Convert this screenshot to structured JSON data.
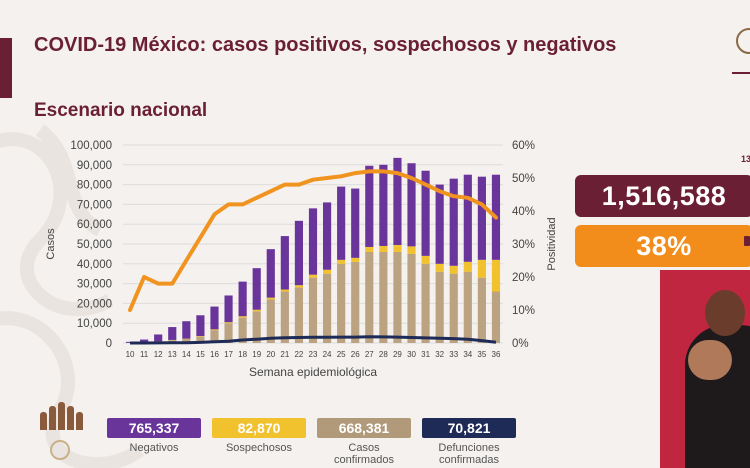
{
  "header": {
    "title": "COVID-19 México: casos positivos, sospechosos y negativos",
    "subtitle": "Escenario nacional"
  },
  "colors": {
    "brand": "#6b1f35",
    "negativos": "#6a359b",
    "sospechosos": "#f2c12e",
    "confirmados": "#bba382",
    "defunciones": "#1f2b57",
    "positividad": "#f0931f"
  },
  "chart_data": {
    "type": "bar",
    "xlabel": "Semana epidemiológica",
    "ylabel": "Casos",
    "y2label": "Positividad",
    "ylim": [
      0,
      100000
    ],
    "y2lim": [
      0,
      60
    ],
    "yticks": [
      "100,000",
      "90,000",
      "80,000",
      "70,000",
      "60,000",
      "50,000",
      "40,000",
      "30,000",
      "20,000",
      "10,000",
      "0"
    ],
    "y2ticks": [
      "60%",
      "50%",
      "40%",
      "30%",
      "20%",
      "10%",
      "0%"
    ],
    "categories": [
      "10",
      "11",
      "12",
      "13",
      "14",
      "15",
      "16",
      "17",
      "18",
      "19",
      "20",
      "21",
      "22",
      "23",
      "24",
      "25",
      "26",
      "27",
      "28",
      "29",
      "30",
      "31",
      "32",
      "33",
      "34",
      "35",
      "36"
    ],
    "series": [
      {
        "name": "Casos confirmados",
        "kind": "stack",
        "values": [
          50,
          200,
          700,
          1400,
          2000,
          3200,
          6500,
          10000,
          12800,
          16000,
          22000,
          26000,
          28000,
          33000,
          35000,
          40000,
          41000,
          46000,
          46000,
          46000,
          45000,
          40000,
          36000,
          35000,
          36000,
          33000,
          26000
        ]
      },
      {
        "name": "Sospechosos",
        "kind": "stack",
        "values": [
          20,
          50,
          100,
          150,
          200,
          300,
          400,
          500,
          700,
          800,
          900,
          1000,
          1200,
          1500,
          2000,
          2000,
          2000,
          2500,
          3000,
          3500,
          3800,
          4000,
          4000,
          4000,
          5000,
          9000,
          16000
        ]
      },
      {
        "name": "Negativos",
        "kind": "stack",
        "values": [
          500,
          1500,
          3500,
          6500,
          8800,
          10500,
          11500,
          13500,
          17500,
          21000,
          24500,
          27000,
          32500,
          33500,
          34000,
          37000,
          35000,
          41000,
          41000,
          44000,
          42000,
          43000,
          40000,
          44000,
          44000,
          42000,
          43000
        ]
      },
      {
        "name": "Defunciones confirmadas",
        "kind": "line-cases",
        "values": [
          0,
          10,
          40,
          80,
          150,
          300,
          600,
          900,
          1500,
          1900,
          2400,
          2700,
          2800,
          2900,
          2950,
          3000,
          3000,
          3200,
          3100,
          3000,
          2800,
          2600,
          2400,
          2200,
          1900,
          1200,
          400
        ]
      },
      {
        "name": "Positividad",
        "kind": "line-pct",
        "values": [
          10,
          20,
          18,
          18,
          25,
          32,
          39,
          42,
          42,
          44,
          46,
          48,
          48,
          49.5,
          50,
          50.5,
          51.5,
          52,
          52,
          51.5,
          50,
          48,
          46,
          44.5,
          44,
          42,
          38
        ]
      }
    ]
  },
  "stats": {
    "cases": "1,516,588",
    "positividad": "38%",
    "date_fragment": "13"
  },
  "legend": [
    {
      "value": "765,337",
      "label1": "Negativos",
      "label2": ""
    },
    {
      "value": "82,870",
      "label1": "Sospechosos",
      "label2": ""
    },
    {
      "value": "668,381",
      "label1": "Casos",
      "label2": "confirmados"
    },
    {
      "value": "70,821",
      "label1": "Defunciones",
      "label2": "confirmadas"
    }
  ]
}
